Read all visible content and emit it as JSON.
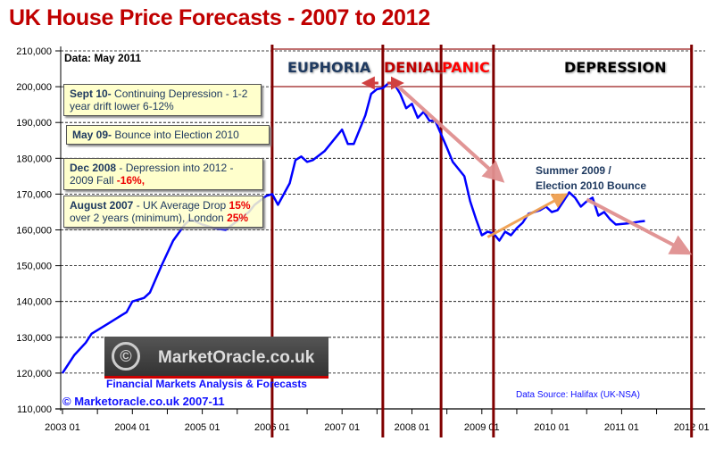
{
  "title": "UK House Price Forecasts - 2007 to 2012",
  "data_note": "Data: May 2011",
  "phases": [
    {
      "label": "EUPHORIA",
      "color": "#1f3a60"
    },
    {
      "label": "DENIAL",
      "color": "#c00000"
    },
    {
      "label": "PANIC",
      "color": "#ff0000"
    },
    {
      "label": "DEPRESSION",
      "color": "#000000"
    }
  ],
  "notes": [
    {
      "bold": "Sept 10-",
      "text": " Continuing Depression - 1-2 year drift lower 6-12%"
    },
    {
      "bold": "May 09-",
      "text": " Bounce into Election 2010"
    },
    {
      "bold": "Dec 2008",
      "text": " - Depression into 2012 - 2009 Fall ",
      "red": "-16%,"
    },
    {
      "bold": "August 2007",
      "text": " - UK Average Drop ",
      "red": "15%",
      "text2": " over 2 years  (minimum), London ",
      "red2": "25%"
    }
  ],
  "annotation": {
    "line1": "Summer 2009 /",
    "line2": "Election 2010 Bounce"
  },
  "logo": {
    "text": "MarketOracle.co.uk",
    "tagline": "Financial Markets Analysis & Forecasts"
  },
  "copyright": "© Marketoracle.co.uk  2007-11",
  "source": "Data Source: Halifax (UK-NSA)",
  "colors": {
    "series": "#0000ff",
    "title": "#c00000",
    "phase_line": "#800000",
    "trend_down": "#e09090",
    "trend_up": "#f0a050",
    "note_bg": "#ffffcc"
  },
  "chart_data": {
    "type": "line",
    "title": "UK House Price Forecasts - 2007 to 2012",
    "xlabel": "",
    "ylabel": "",
    "ylim": [
      110000,
      210000
    ],
    "yticks": [
      "110,000",
      "120,000",
      "130,000",
      "140,000",
      "150,000",
      "160,000",
      "170,000",
      "180,000",
      "190,000",
      "200,000",
      "210,000"
    ],
    "xticks": [
      "2003 01",
      "2004 01",
      "2005 01",
      "2006 01",
      "2007 01",
      "2008 01",
      "2009 01",
      "2010 01",
      "2011 01",
      "2012 01"
    ],
    "grid": "horizontal dashed",
    "phase_boundaries": [
      "2006-01",
      "2007-08",
      "2008-06",
      "2009-03",
      "2012-01"
    ],
    "series": [
      {
        "color": "#0000ff",
        "points": [
          [
            "2003-01",
            120000
          ],
          [
            "2003-03",
            125000
          ],
          [
            "2003-05",
            128500
          ],
          [
            "2003-06",
            131000
          ],
          [
            "2003-09",
            134000
          ],
          [
            "2003-11",
            136000
          ],
          [
            "2003-12",
            137000
          ],
          [
            "2004-01",
            140000
          ],
          [
            "2004-03",
            141000
          ],
          [
            "2004-04",
            142500
          ],
          [
            "2004-06",
            150000
          ],
          [
            "2004-08",
            157000
          ],
          [
            "2004-10",
            161500
          ],
          [
            "2004-11",
            163000
          ],
          [
            "2005-01",
            161500
          ],
          [
            "2005-03",
            160500
          ],
          [
            "2005-05",
            160000
          ],
          [
            "2005-07",
            162500
          ],
          [
            "2005-09",
            165000
          ],
          [
            "2005-10",
            167000
          ],
          [
            "2005-12",
            169500
          ],
          [
            "2006-01",
            170000
          ],
          [
            "2006-02",
            167000
          ],
          [
            "2006-04",
            173000
          ],
          [
            "2006-05",
            179500
          ],
          [
            "2006-06",
            180500
          ],
          [
            "2006-07",
            179000
          ],
          [
            "2006-08",
            179500
          ],
          [
            "2006-10",
            182000
          ],
          [
            "2006-12",
            186000
          ],
          [
            "2007-01",
            188000
          ],
          [
            "2007-02",
            184000
          ],
          [
            "2007-03",
            184000
          ],
          [
            "2007-05",
            192000
          ],
          [
            "2007-06",
            198000
          ],
          [
            "2007-07",
            199300
          ],
          [
            "2007-08",
            199600
          ],
          [
            "2007-09",
            201000
          ],
          [
            "2007-10",
            200700
          ],
          [
            "2007-11",
            198000
          ],
          [
            "2007-12",
            194000
          ],
          [
            "2008-01",
            195200
          ],
          [
            "2008-02",
            191300
          ],
          [
            "2008-03",
            193000
          ],
          [
            "2008-04",
            190500
          ],
          [
            "2008-05",
            190500
          ],
          [
            "2008-07",
            183000
          ],
          [
            "2008-08",
            179000
          ],
          [
            "2008-10",
            175000
          ],
          [
            "2008-11",
            168000
          ],
          [
            "2008-12",
            163000
          ],
          [
            "2009-01",
            158500
          ],
          [
            "2009-02",
            159500
          ],
          [
            "2009-03",
            159000
          ],
          [
            "2009-04",
            157000
          ],
          [
            "2009-05",
            159500
          ],
          [
            "2009-06",
            158500
          ],
          [
            "2009-07",
            160500
          ],
          [
            "2009-08",
            162000
          ],
          [
            "2009-09",
            164500
          ],
          [
            "2009-10",
            165000
          ],
          [
            "2009-11",
            165500
          ],
          [
            "2009-12",
            166500
          ],
          [
            "2010-01",
            165000
          ],
          [
            "2010-02",
            165500
          ],
          [
            "2010-03",
            168000
          ],
          [
            "2010-04",
            170500
          ],
          [
            "2010-05",
            169000
          ],
          [
            "2010-06",
            166500
          ],
          [
            "2010-07",
            168000
          ],
          [
            "2010-08",
            169000
          ],
          [
            "2010-09",
            164000
          ],
          [
            "2010-10",
            165000
          ],
          [
            "2010-11",
            163000
          ],
          [
            "2010-12",
            161500
          ],
          [
            "2011-02",
            161800
          ],
          [
            "2011-04",
            162300
          ],
          [
            "2011-05",
            162500
          ]
        ]
      }
    ],
    "trend_arrows": [
      {
        "from": [
          "2007-10",
          201000
        ],
        "to": [
          "2009-04",
          174500
        ],
        "color": "#e09090"
      },
      {
        "from": [
          "2009-02",
          158000
        ],
        "to": [
          "2010-03",
          169500
        ],
        "color": "#f0a050"
      },
      {
        "from": [
          "2010-07",
          168500
        ],
        "to": [
          "2012-00",
          154000
        ],
        "color": "#e09090"
      }
    ]
  }
}
